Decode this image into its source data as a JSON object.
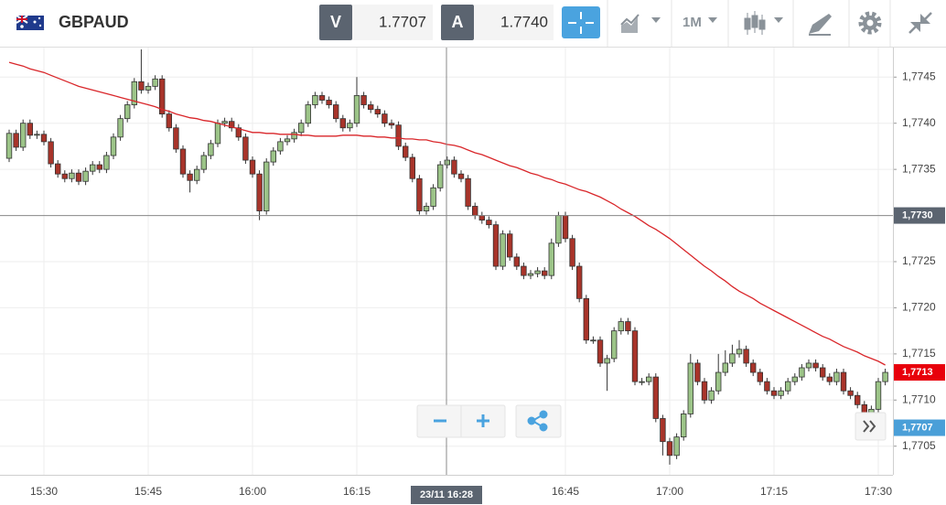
{
  "header": {
    "symbol": "GBPAUD",
    "sell_label": "V",
    "sell_price": "1.7707",
    "buy_label": "A",
    "buy_price": "1.7740",
    "timeframe": "1M"
  },
  "chart_data": {
    "type": "candlestick",
    "categories": [
      null,
      null,
      null,
      null,
      null,
      "15:30",
      null,
      null,
      null,
      null,
      null,
      null,
      null,
      null,
      null,
      null,
      null,
      null,
      null,
      null,
      "15:45",
      null,
      null,
      null,
      null,
      null,
      null,
      null,
      null,
      null,
      null,
      null,
      null,
      null,
      null,
      "16:00",
      null,
      null,
      null,
      null,
      null,
      null,
      null,
      null,
      null,
      null,
      null,
      null,
      null,
      null,
      "16:15",
      null,
      null,
      null,
      null,
      null,
      null,
      null,
      null,
      null,
      null,
      null,
      null,
      null,
      null,
      null,
      null,
      null,
      null,
      null,
      null,
      null,
      null,
      null,
      null,
      null,
      null,
      null,
      null,
      null,
      "16:45",
      null,
      null,
      null,
      null,
      null,
      null,
      null,
      null,
      null,
      null,
      null,
      null,
      null,
      null,
      "17:00",
      null,
      null,
      null,
      null,
      null,
      null,
      null,
      null,
      null,
      null,
      null,
      null,
      null,
      null,
      "17:15",
      null,
      null,
      null,
      null,
      null,
      null,
      null,
      null,
      null,
      null,
      null,
      null,
      null,
      null,
      "17:30",
      null
    ],
    "open": [
      1.77362,
      1.77389,
      1.77374,
      1.774,
      1.77387,
      1.77388,
      1.7738,
      1.77356,
      1.77345,
      1.7734,
      1.77346,
      1.77337,
      1.77348,
      1.77355,
      1.7735,
      1.77365,
      1.77385,
      1.77405,
      1.7742,
      1.77445,
      1.77436,
      1.7744,
      1.77448,
      1.7741,
      1.77395,
      1.77372,
      1.77345,
      1.77338,
      1.7735,
      1.77365,
      1.77378,
      1.774,
      1.77402,
      1.77395,
      1.77385,
      1.7736,
      1.77345,
      1.77305,
      1.77358,
      1.7737,
      1.7738,
      1.77383,
      1.7739,
      1.774,
      1.7742,
      1.7743,
      1.77425,
      1.7742,
      1.77405,
      1.77395,
      1.774,
      1.7743,
      1.7742,
      1.77415,
      1.7741,
      1.774,
      1.77398,
      1.77375,
      1.77363,
      1.7734,
      1.77305,
      1.7731,
      1.7733,
      1.77355,
      1.7736,
      1.77345,
      1.7734,
      1.7731,
      1.773,
      1.77295,
      1.7729,
      1.77245,
      1.7728,
      1.77255,
      1.77245,
      1.77235,
      1.77237,
      1.7724,
      1.77235,
      1.7727,
      1.773,
      1.77275,
      1.77245,
      1.7721,
      1.77165,
      1.77165,
      1.7714,
      1.77145,
      1.77175,
      1.77185,
      1.77175,
      1.7712,
      1.7712,
      1.77125,
      1.7708,
      1.77055,
      1.7704,
      1.7706,
      1.77085,
      1.7714,
      1.7712,
      1.771,
      1.7711,
      1.7713,
      1.7714,
      1.7715,
      1.77155,
      1.7714,
      1.7713,
      1.7712,
      1.7711,
      1.77105,
      1.7711,
      1.7712,
      1.77125,
      1.77135,
      1.7714,
      1.77135,
      1.77125,
      1.7712,
      1.7713,
      1.7711,
      1.77105,
      1.77095,
      1.77085,
      1.7709,
      1.7712
    ],
    "high": [
      1.77393,
      1.77393,
      1.77404,
      1.77404,
      1.77392,
      1.77392,
      1.77384,
      1.7736,
      1.77349,
      1.7735,
      1.7735,
      1.77352,
      1.77359,
      1.77359,
      1.77369,
      1.77389,
      1.77409,
      1.77424,
      1.77449,
      1.7748,
      1.77444,
      1.77452,
      1.77452,
      1.77414,
      1.77399,
      1.77376,
      1.77349,
      1.77354,
      1.77369,
      1.77382,
      1.77404,
      1.77406,
      1.77406,
      1.77399,
      1.77389,
      1.77364,
      1.77349,
      1.77362,
      1.77374,
      1.77384,
      1.77387,
      1.77394,
      1.77404,
      1.77424,
      1.77434,
      1.77434,
      1.77429,
      1.77424,
      1.77409,
      1.77404,
      1.7745,
      1.77434,
      1.77424,
      1.77419,
      1.77414,
      1.77404,
      1.77402,
      1.77379,
      1.77367,
      1.77344,
      1.77314,
      1.77334,
      1.77359,
      1.77364,
      1.77364,
      1.77349,
      1.77344,
      1.77314,
      1.77304,
      1.77299,
      1.77294,
      1.77284,
      1.77284,
      1.77259,
      1.77249,
      1.77241,
      1.77244,
      1.77244,
      1.77275,
      1.77304,
      1.77304,
      1.77279,
      1.77249,
      1.77214,
      1.77169,
      1.77169,
      1.77149,
      1.77179,
      1.77189,
      1.77189,
      1.77179,
      1.77124,
      1.77129,
      1.77129,
      1.77084,
      1.77059,
      1.77064,
      1.77089,
      1.7715,
      1.77144,
      1.77124,
      1.77114,
      1.7715,
      1.77154,
      1.7716,
      1.77165,
      1.77159,
      1.77144,
      1.77134,
      1.77124,
      1.77114,
      1.77114,
      1.77124,
      1.77129,
      1.77139,
      1.77144,
      1.77144,
      1.77139,
      1.77129,
      1.77134,
      1.77134,
      1.77114,
      1.77109,
      1.77099,
      1.77094,
      1.77124,
      1.77134
    ],
    "low": [
      1.77358,
      1.7737,
      1.7737,
      1.77383,
      1.77383,
      1.77376,
      1.77352,
      1.77341,
      1.77336,
      1.77336,
      1.77333,
      1.77333,
      1.77344,
      1.77346,
      1.77346,
      1.77361,
      1.77381,
      1.77401,
      1.77416,
      1.77432,
      1.77432,
      1.77436,
      1.77406,
      1.77391,
      1.77368,
      1.77341,
      1.77325,
      1.77334,
      1.77346,
      1.77361,
      1.77374,
      1.77396,
      1.77391,
      1.77381,
      1.77356,
      1.77341,
      1.77295,
      1.77301,
      1.77354,
      1.77366,
      1.77376,
      1.77379,
      1.77386,
      1.77396,
      1.77416,
      1.77421,
      1.77416,
      1.77401,
      1.77391,
      1.77391,
      1.77396,
      1.77416,
      1.77411,
      1.77406,
      1.77396,
      1.77394,
      1.77371,
      1.77359,
      1.77336,
      1.77301,
      1.77301,
      1.77306,
      1.77326,
      1.77351,
      1.77341,
      1.77336,
      1.77306,
      1.77296,
      1.77291,
      1.77286,
      1.77241,
      1.77241,
      1.77251,
      1.77241,
      1.77231,
      1.77231,
      1.77233,
      1.77231,
      1.77231,
      1.77266,
      1.77271,
      1.77241,
      1.77206,
      1.77161,
      1.77161,
      1.77136,
      1.7711,
      1.77141,
      1.77171,
      1.77171,
      1.77116,
      1.77116,
      1.77116,
      1.77076,
      1.7704,
      1.7703,
      1.77036,
      1.77056,
      1.77081,
      1.77116,
      1.77096,
      1.77096,
      1.77106,
      1.77126,
      1.77136,
      1.77146,
      1.77136,
      1.77126,
      1.77116,
      1.77106,
      1.77101,
      1.77101,
      1.77106,
      1.77116,
      1.77121,
      1.77131,
      1.77131,
      1.77121,
      1.77116,
      1.77116,
      1.77106,
      1.77101,
      1.77091,
      1.77081,
      1.77081,
      1.77086,
      1.77116
    ],
    "close": [
      1.77389,
      1.77374,
      1.774,
      1.77387,
      1.77388,
      1.7738,
      1.77356,
      1.77345,
      1.7734,
      1.77346,
      1.77337,
      1.77348,
      1.77355,
      1.7735,
      1.77365,
      1.77385,
      1.77405,
      1.7742,
      1.77445,
      1.77436,
      1.7744,
      1.77448,
      1.7741,
      1.77395,
      1.77372,
      1.77345,
      1.77338,
      1.7735,
      1.77365,
      1.77378,
      1.774,
      1.77402,
      1.77395,
      1.77385,
      1.7736,
      1.77345,
      1.77305,
      1.77358,
      1.7737,
      1.7738,
      1.77383,
      1.7739,
      1.774,
      1.7742,
      1.7743,
      1.77425,
      1.7742,
      1.77405,
      1.77395,
      1.774,
      1.7743,
      1.7742,
      1.77415,
      1.7741,
      1.774,
      1.77398,
      1.77375,
      1.77363,
      1.7734,
      1.77305,
      1.7731,
      1.7733,
      1.77355,
      1.7736,
      1.77345,
      1.7734,
      1.7731,
      1.773,
      1.77295,
      1.7729,
      1.77245,
      1.7728,
      1.77255,
      1.77245,
      1.77235,
      1.77237,
      1.7724,
      1.77235,
      1.7727,
      1.773,
      1.77275,
      1.77245,
      1.7721,
      1.77165,
      1.77165,
      1.7714,
      1.77145,
      1.77175,
      1.77185,
      1.77175,
      1.7712,
      1.7712,
      1.77125,
      1.7708,
      1.77055,
      1.7704,
      1.7706,
      1.77085,
      1.7714,
      1.7712,
      1.771,
      1.7711,
      1.7713,
      1.7714,
      1.7715,
      1.77155,
      1.7714,
      1.7713,
      1.7712,
      1.7711,
      1.77105,
      1.7711,
      1.7712,
      1.77125,
      1.77135,
      1.7714,
      1.77135,
      1.77125,
      1.7712,
      1.7713,
      1.7711,
      1.77105,
      1.77095,
      1.77085,
      1.7709,
      1.7712,
      1.7713
    ],
    "up_color": "#9cc488",
    "down_color": "#a8342a",
    "moving_average": {
      "color": "#d9262a",
      "values": [
        1.77466,
        1.77464,
        1.77462,
        1.77459,
        1.77457,
        1.77455,
        1.77452,
        1.77449,
        1.77446,
        1.77443,
        1.7744,
        1.77438,
        1.77436,
        1.77434,
        1.77432,
        1.7743,
        1.77428,
        1.77426,
        1.77424,
        1.77422,
        1.7742,
        1.77418,
        1.77415,
        1.77413,
        1.7741,
        1.77408,
        1.77406,
        1.77405,
        1.77403,
        1.77402,
        1.774,
        1.77398,
        1.77396,
        1.77394,
        1.77392,
        1.7739,
        1.7739,
        1.77389,
        1.77389,
        1.77388,
        1.77388,
        1.77388,
        1.77387,
        1.77387,
        1.77386,
        1.77386,
        1.77386,
        1.77386,
        1.77387,
        1.77387,
        1.77387,
        1.77386,
        1.77386,
        1.77385,
        1.77385,
        1.77384,
        1.77384,
        1.77383,
        1.77383,
        1.77382,
        1.77382,
        1.7738,
        1.77379,
        1.77377,
        1.77376,
        1.77374,
        1.77371,
        1.77368,
        1.77366,
        1.77363,
        1.7736,
        1.77357,
        1.77354,
        1.77352,
        1.77349,
        1.77346,
        1.77344,
        1.77341,
        1.77339,
        1.77336,
        1.77334,
        1.77331,
        1.77328,
        1.77326,
        1.77323,
        1.7732,
        1.77316,
        1.77312,
        1.77307,
        1.77303,
        1.77299,
        1.77294,
        1.77289,
        1.77285,
        1.7728,
        1.77275,
        1.77269,
        1.77263,
        1.77257,
        1.77251,
        1.77245,
        1.7724,
        1.77234,
        1.77229,
        1.77223,
        1.77218,
        1.77214,
        1.7721,
        1.77205,
        1.77201,
        1.77197,
        1.77193,
        1.77189,
        1.77185,
        1.77181,
        1.77177,
        1.77173,
        1.77169,
        1.77166,
        1.77162,
        1.77158,
        1.77155,
        1.77152,
        1.77148,
        1.77145,
        1.77142,
        1.77138
      ]
    },
    "ylim": [
      1.77019,
      1.77482
    ],
    "yticks": [
      {
        "value": 1.7705,
        "label": "1,7705"
      },
      {
        "value": 1.771,
        "label": "1,7710"
      },
      {
        "value": 1.7715,
        "label": "1,7715"
      },
      {
        "value": 1.772,
        "label": "1,7720"
      },
      {
        "value": 1.7725,
        "label": "1,7725"
      },
      {
        "value": 1.773,
        "label": "1,7730"
      },
      {
        "value": 1.7735,
        "label": "1,7735"
      },
      {
        "value": 1.774,
        "label": "1,7740"
      },
      {
        "value": 1.7745,
        "label": "1,7745"
      }
    ],
    "grid": true,
    "crosshair": {
      "x_label": "23/11 16:28",
      "y": {
        "value": 1.773,
        "label": "1,7730"
      }
    },
    "price_labels": [
      {
        "value": 1.7713,
        "label": "1,7713",
        "color": "#e8000b"
      },
      {
        "value": 1.7707,
        "label": "1,7707",
        "color": "#4a9fd8"
      }
    ]
  }
}
